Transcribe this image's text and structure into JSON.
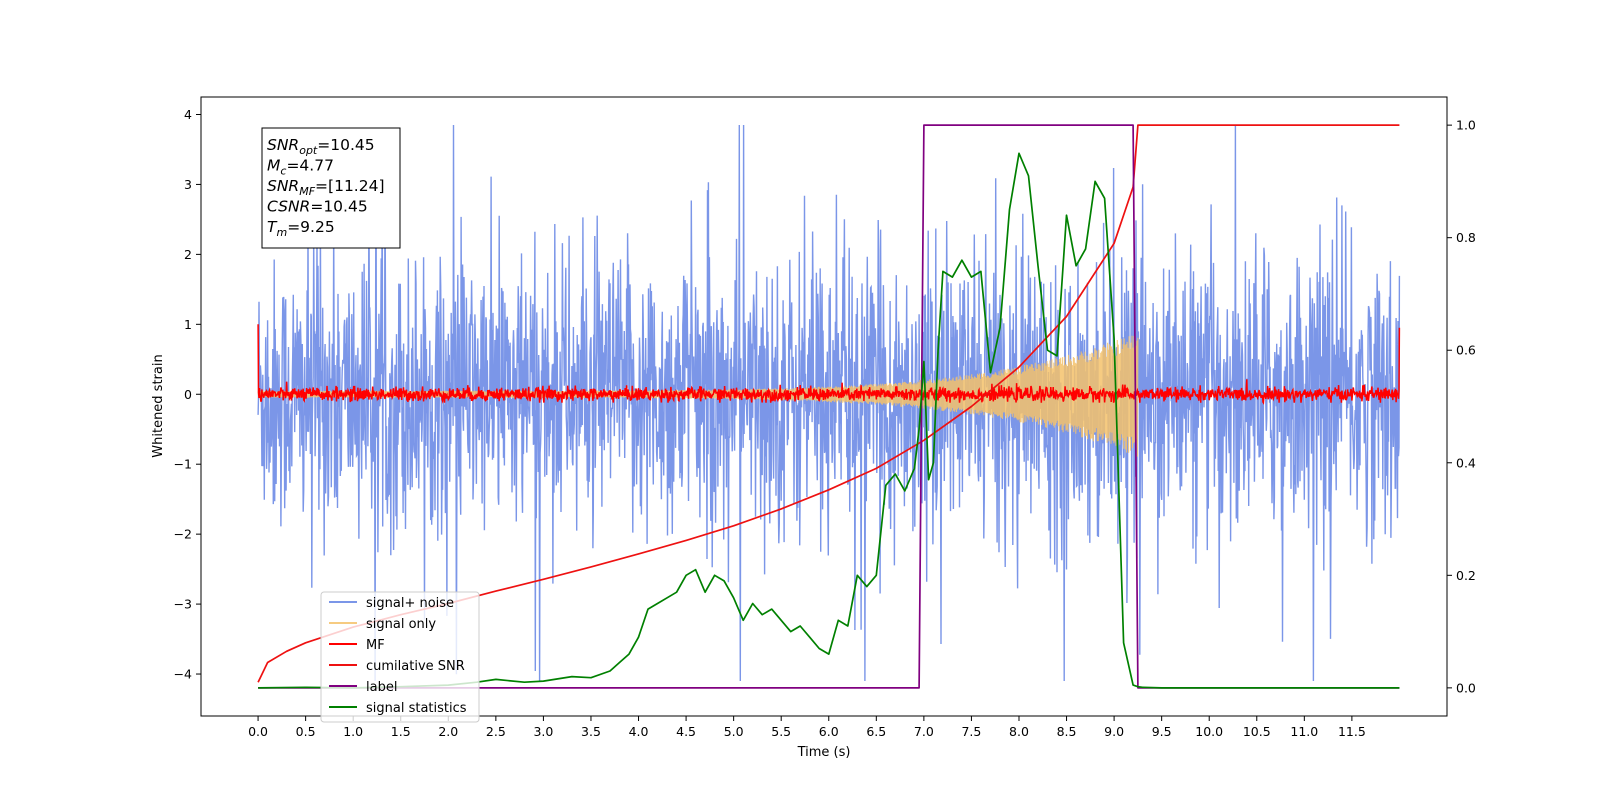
{
  "chart_data": {
    "type": "line",
    "xlabel": "Time (s)",
    "ylabel": "Whitened strain",
    "xlim": [
      -0.6,
      12.5
    ],
    "ylim": [
      -4.6,
      4.25
    ],
    "y2lim": [
      -0.05,
      1.05
    ],
    "x_ticks": [
      0.0,
      0.5,
      1.0,
      1.5,
      2.0,
      2.5,
      3.0,
      3.5,
      4.0,
      4.5,
      5.0,
      5.5,
      6.0,
      6.5,
      7.0,
      7.5,
      8.0,
      8.5,
      9.0,
      9.5,
      10.0,
      10.5,
      11.0,
      11.5
    ],
    "x_tick_labels": [
      "0.0",
      "0.5",
      "1.0",
      "1.5",
      "2.0",
      "2.5",
      "3.0",
      "3.5",
      "4.0",
      "4.5",
      "5.0",
      "5.5",
      "6.0",
      "6.5",
      "7.0",
      "7.5",
      "8.0",
      "8.5",
      "9.0",
      "9.5",
      "10.0",
      "10.5",
      "11.0",
      "11.5"
    ],
    "y_ticks": [
      4,
      3,
      2,
      1,
      0,
      -1,
      -2,
      -3,
      -4
    ],
    "y_tick_labels": [
      "4",
      "3",
      "2",
      "1",
      "0",
      "−1",
      "−2",
      "−3",
      "−4"
    ],
    "y2_ticks": [
      1.0,
      0.8,
      0.6,
      0.4,
      0.2,
      0.0
    ],
    "y2_tick_labels": [
      "1.0",
      "0.8",
      "0.6",
      "0.4",
      "0.2",
      "0.0"
    ],
    "legend_position": "lower-left",
    "grid": false,
    "annotation": {
      "lines": [
        {
          "base": "SNR",
          "sub": "opt",
          "value": "=10.45"
        },
        {
          "base": "M",
          "sub": "c",
          "value": "=4.77"
        },
        {
          "base": "SNR",
          "sub": "MF",
          "value": "=[11.24]"
        },
        {
          "base": "CSNR",
          "sub": "",
          "value": "=10.45"
        },
        {
          "base": "T",
          "sub": "m",
          "value": "=9.25"
        }
      ]
    },
    "series": [
      {
        "name": "signal+ noise",
        "color": "#7b96e8",
        "axis": "left",
        "kind": "noise",
        "x_range": [
          0.0,
          12.0
        ],
        "band_low": [
          -1.3,
          1.3
        ],
        "spike_range": [
          -4.1,
          3.85
        ]
      },
      {
        "name": "signal only",
        "color": "#f5c26b",
        "axis": "left",
        "kind": "chirp",
        "x_range": [
          0.0,
          9.25
        ],
        "amplitude_start": 0.05,
        "amplitude_end": 0.9
      },
      {
        "name": "MF",
        "color": "#ff0000",
        "axis": "left",
        "kind": "noise",
        "x_range": [
          0.0,
          12.0
        ],
        "band": [
          -0.12,
          0.25
        ],
        "edge_values": [
          1.0,
          0.95
        ]
      },
      {
        "name": "cumilative SNR",
        "color": "#ee1111",
        "axis": "right",
        "x": [
          0.0,
          0.1,
          0.3,
          0.5,
          1.0,
          1.5,
          2.0,
          2.5,
          3.0,
          3.5,
          4.0,
          4.5,
          5.0,
          5.5,
          6.0,
          6.5,
          7.0,
          7.5,
          8.0,
          8.5,
          9.0,
          9.2,
          9.25,
          12.0
        ],
        "y": [
          0.01,
          0.045,
          0.065,
          0.08,
          0.108,
          0.13,
          0.15,
          0.172,
          0.193,
          0.215,
          0.238,
          0.262,
          0.288,
          0.318,
          0.352,
          0.39,
          0.44,
          0.5,
          0.57,
          0.66,
          0.79,
          0.89,
          1.0,
          1.0
        ]
      },
      {
        "name": "label",
        "color": "#800080",
        "axis": "right",
        "x": [
          0.0,
          6.95,
          7.0,
          9.2,
          9.25,
          12.0
        ],
        "y": [
          0.0,
          0.0,
          1.0,
          1.0,
          0.0,
          0.0
        ]
      },
      {
        "name": "signal statistics",
        "color": "#008000",
        "axis": "right",
        "x": [
          0.0,
          0.5,
          1.0,
          1.5,
          2.0,
          2.3,
          2.5,
          2.8,
          3.0,
          3.3,
          3.5,
          3.7,
          3.8,
          3.9,
          4.0,
          4.1,
          4.2,
          4.3,
          4.4,
          4.5,
          4.6,
          4.7,
          4.8,
          4.9,
          5.0,
          5.1,
          5.2,
          5.3,
          5.4,
          5.5,
          5.6,
          5.7,
          5.8,
          5.9,
          6.0,
          6.1,
          6.2,
          6.3,
          6.4,
          6.5,
          6.6,
          6.7,
          6.8,
          6.9,
          6.95,
          7.0,
          7.05,
          7.1,
          7.15,
          7.2,
          7.3,
          7.4,
          7.5,
          7.6,
          7.7,
          7.8,
          7.9,
          8.0,
          8.1,
          8.2,
          8.3,
          8.4,
          8.5,
          8.6,
          8.7,
          8.8,
          8.9,
          9.0,
          9.1,
          9.2,
          9.25,
          9.3,
          9.5,
          10.0,
          11.0,
          12.0
        ],
        "y": [
          0.0,
          0.001,
          0.0,
          0.002,
          0.005,
          0.01,
          0.015,
          0.01,
          0.012,
          0.02,
          0.018,
          0.03,
          0.045,
          0.06,
          0.09,
          0.14,
          0.15,
          0.16,
          0.17,
          0.2,
          0.21,
          0.17,
          0.2,
          0.19,
          0.16,
          0.12,
          0.15,
          0.13,
          0.14,
          0.12,
          0.1,
          0.11,
          0.09,
          0.07,
          0.06,
          0.12,
          0.11,
          0.2,
          0.18,
          0.2,
          0.36,
          0.38,
          0.35,
          0.39,
          0.46,
          0.58,
          0.37,
          0.4,
          0.6,
          0.74,
          0.73,
          0.76,
          0.73,
          0.74,
          0.56,
          0.64,
          0.85,
          0.95,
          0.91,
          0.75,
          0.6,
          0.59,
          0.84,
          0.75,
          0.78,
          0.9,
          0.87,
          0.62,
          0.08,
          0.005,
          0.002,
          0.001,
          0.0,
          0.0,
          0.0,
          0.0
        ]
      }
    ]
  }
}
